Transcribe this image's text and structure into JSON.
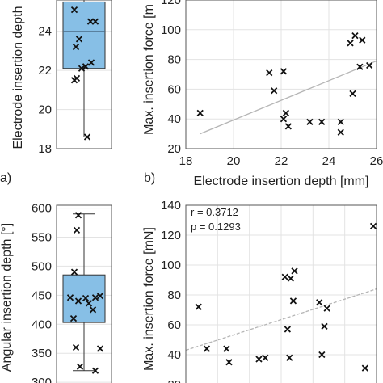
{
  "panel_labels": {
    "a": "a)",
    "b": "b)"
  },
  "chart_data": [
    {
      "type": "box",
      "ylabel": "Electrode insertion depth",
      "ylim": [
        18,
        25.6
      ],
      "yticks": [
        18,
        20,
        22,
        24
      ],
      "grid": true,
      "box": {
        "whisker_low": 18.6,
        "q1": 22.1,
        "median": 24.0,
        "q3": 25.5,
        "whisker_high": 25.6
      },
      "points": [
        18.6,
        21.5,
        21.6,
        22.1,
        22.2,
        22.4,
        23.2,
        23.6,
        24.5,
        24.5,
        25.1
      ],
      "box_color": "#87bfe6"
    },
    {
      "type": "scatter",
      "xlabel": "Electrode insertion depth [mm]",
      "ylabel": "Max. insertion force [m",
      "xlim": [
        18,
        26
      ],
      "ylim": [
        20,
        120
      ],
      "xticks": [
        18,
        20,
        22,
        24,
        26
      ],
      "yticks": [
        20,
        40,
        60,
        80,
        100,
        120
      ],
      "grid": true,
      "points": [
        [
          18.6,
          44
        ],
        [
          21.5,
          71
        ],
        [
          21.7,
          59
        ],
        [
          22.1,
          72
        ],
        [
          22.1,
          40
        ],
        [
          22.2,
          44
        ],
        [
          22.3,
          35
        ],
        [
          23.2,
          38
        ],
        [
          23.7,
          38
        ],
        [
          24.5,
          38
        ],
        [
          24.5,
          31
        ],
        [
          24.9,
          91
        ],
        [
          25.0,
          57
        ],
        [
          25.1,
          96
        ],
        [
          25.3,
          75
        ],
        [
          25.4,
          93
        ],
        [
          25.7,
          76
        ]
      ],
      "trend": [
        [
          18.6,
          30
        ],
        [
          26,
          79
        ]
      ]
    },
    {
      "type": "box",
      "ylabel": "Angular insertion depth [°]",
      "ylim": [
        300,
        600
      ],
      "yticks": [
        300,
        350,
        400,
        450,
        500,
        550,
        600
      ],
      "grid": true,
      "box": {
        "whisker_low": 320,
        "q1": 403,
        "median": 440,
        "q3": 485,
        "whisker_high": 590
      },
      "points": [
        320,
        327,
        358,
        360,
        410,
        425,
        436,
        440,
        445,
        446,
        446,
        449,
        490,
        562,
        588
      ],
      "box_color": "#87bfe6"
    },
    {
      "type": "scatter",
      "ylabel": "Max. insertion force [mN]",
      "xlim": [
        300,
        600
      ],
      "ylim": [
        20,
        140
      ],
      "yticks": [
        20,
        40,
        60,
        80,
        100,
        120,
        140
      ],
      "grid": true,
      "annotations": [
        "r = 0.3712",
        "p = 0.1293"
      ],
      "points": [
        [
          320,
          72
        ],
        [
          333,
          44
        ],
        [
          364,
          44
        ],
        [
          368,
          35
        ],
        [
          415,
          37
        ],
        [
          425,
          38
        ],
        [
          456,
          92
        ],
        [
          460,
          57
        ],
        [
          463,
          38
        ],
        [
          465,
          91
        ],
        [
          469,
          76
        ],
        [
          471,
          96
        ],
        [
          510,
          75
        ],
        [
          514,
          40
        ],
        [
          518,
          59
        ],
        [
          522,
          71
        ],
        [
          582,
          31
        ],
        [
          595,
          126
        ]
      ],
      "trend": [
        [
          300,
          43
        ],
        [
          600,
          84
        ]
      ]
    }
  ]
}
